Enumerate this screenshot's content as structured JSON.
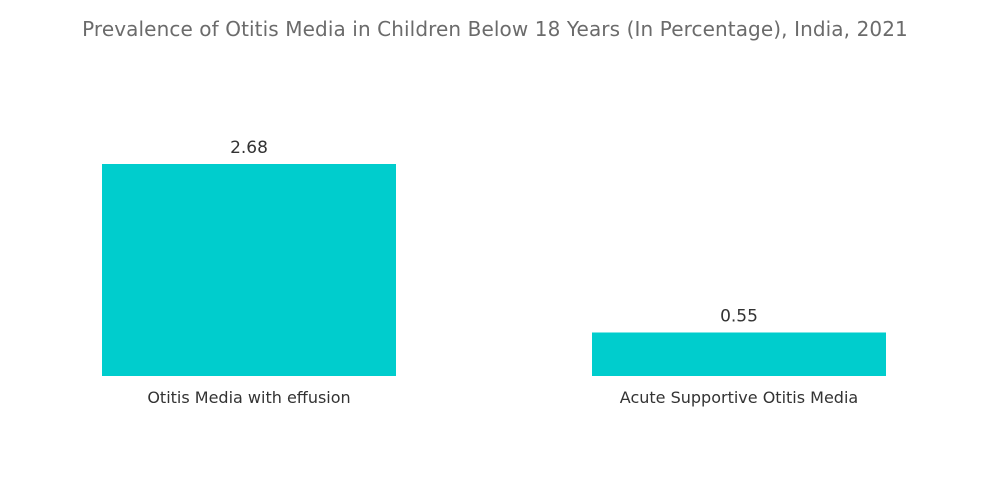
{
  "chart_data": {
    "type": "bar",
    "title": "Prevalence of Otitis Media in Children Below 18 Years (In Percentage), India, 2021",
    "categories": [
      "Otitis Media with effusion",
      "Acute Supportive Otitis Media"
    ],
    "values": [
      2.68,
      0.55
    ],
    "value_labels": [
      "2.68",
      "0.55"
    ],
    "xlabel": "",
    "ylabel": "",
    "ylim": [
      0,
      2.68
    ],
    "grid": false,
    "legend": "none",
    "bar_color": "#00cdcd"
  }
}
